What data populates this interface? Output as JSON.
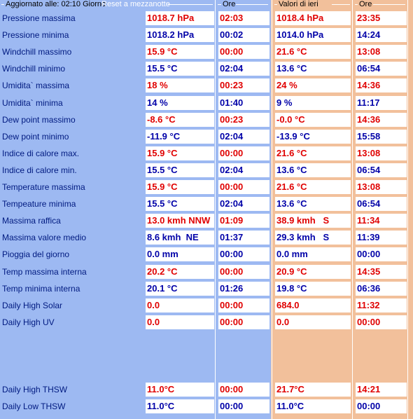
{
  "header": {
    "updated_label": "Aggiornato alle: 02:10 Giorno",
    "reset_label": "Reset a mezzanotte",
    "hours_label": "Ore",
    "yesterday_label": "Valori di ieri",
    "hours_label_yesterday": "Ore"
  },
  "rows": [
    {
      "label": "Pressione massima",
      "today": "1018.7 hPa",
      "today_time": "02:03",
      "yest": "1018.4 hPa",
      "yest_time": "23:35",
      "colors": [
        "red",
        "red",
        "red",
        "red"
      ]
    },
    {
      "label": "Pressione minima",
      "today": "1018.2 hPa",
      "today_time": "00:02",
      "yest": "1014.0 hPa",
      "yest_time": "14:24",
      "colors": [
        "blue",
        "blue",
        "blue",
        "blue"
      ]
    },
    {
      "label": "Windchill massimo",
      "today": "15.9 °C",
      "today_time": "00:00",
      "yest": "21.6 °C",
      "yest_time": "13:08",
      "colors": [
        "red",
        "red",
        "red",
        "red"
      ]
    },
    {
      "label": "Windchill minimo",
      "today": "15.5 °C",
      "today_time": "02:04",
      "yest": "13.6 °C",
      "yest_time": "06:54",
      "colors": [
        "blue",
        "blue",
        "blue",
        "blue"
      ]
    },
    {
      "label": "Umidita` massima",
      "today": "18 %",
      "today_time": "00:23",
      "yest": "24 %",
      "yest_time": "14:36",
      "colors": [
        "red",
        "red",
        "red",
        "red"
      ]
    },
    {
      "label": "Umidita` minima",
      "today": "14 %",
      "today_time": "01:40",
      "yest": "9 %",
      "yest_time": "11:17",
      "colors": [
        "blue",
        "blue",
        "blue",
        "blue"
      ]
    },
    {
      "label": "Dew point massimo",
      "today": "-8.6 °C",
      "today_time": "00:23",
      "yest": "-0.0 °C",
      "yest_time": "14:36",
      "colors": [
        "red",
        "red",
        "red",
        "red"
      ]
    },
    {
      "label": "Dew point minimo",
      "today": "-11.9 °C",
      "today_time": "02:04",
      "yest": "-13.9 °C",
      "yest_time": "15:58",
      "colors": [
        "blue",
        "blue",
        "blue",
        "blue"
      ]
    },
    {
      "label": "Indice di calore max.",
      "today": "15.9 °C",
      "today_time": "00:00",
      "yest": "21.6 °C",
      "yest_time": "13:08",
      "colors": [
        "red",
        "red",
        "red",
        "red"
      ]
    },
    {
      "label": "Indice di calore min.",
      "today": "15.5 °C",
      "today_time": "02:04",
      "yest": "13.6 °C",
      "yest_time": "06:54",
      "colors": [
        "blue",
        "blue",
        "blue",
        "blue"
      ]
    },
    {
      "label": "Temperature massima",
      "today": "15.9 °C",
      "today_time": "00:00",
      "yest": "21.6 °C",
      "yest_time": "13:08",
      "colors": [
        "red",
        "red",
        "red",
        "red"
      ]
    },
    {
      "label": "Tempeature minima",
      "today": "15.5 °C",
      "today_time": "02:04",
      "yest": "13.6 °C",
      "yest_time": "06:54",
      "colors": [
        "blue",
        "blue",
        "blue",
        "blue"
      ]
    },
    {
      "label": "Massima raffica",
      "today": "13.0 kmh NNW",
      "today_time": "01:09",
      "yest": "38.9 kmh   S",
      "yest_time": "11:34",
      "colors": [
        "red",
        "red",
        "red",
        "red"
      ]
    },
    {
      "label": "Massima valore medio",
      "today": "8.6 kmh  NE",
      "today_time": "01:37",
      "yest": "29.3 kmh   S",
      "yest_time": "11:39",
      "colors": [
        "blue",
        "blue",
        "blue",
        "blue"
      ]
    },
    {
      "label": "Pioggia del giorno",
      "today": "0.0 mm",
      "today_time": "00:00",
      "yest": "0.0 mm",
      "yest_time": "00:00",
      "colors": [
        "blue",
        "blue",
        "blue",
        "blue"
      ]
    },
    {
      "label": "Temp massima interna",
      "today": "20.2 °C",
      "today_time": "00:00",
      "yest": "20.9 °C",
      "yest_time": "14:35",
      "colors": [
        "red",
        "red",
        "red",
        "red"
      ]
    },
    {
      "label": "Temp minima interna",
      "today": "20.1 °C",
      "today_time": "01:26",
      "yest": "19.8 °C",
      "yest_time": "06:36",
      "colors": [
        "blue",
        "blue",
        "blue",
        "blue"
      ]
    },
    {
      "label": "Daily High Solar",
      "today": "0.0",
      "today_time": "00:00",
      "yest": "684.0",
      "yest_time": "11:32",
      "colors": [
        "red",
        "red",
        "red",
        "red"
      ]
    },
    {
      "label": "Daily High UV",
      "today": "0.0",
      "today_time": "00:00",
      "yest": "0.0",
      "yest_time": "00:00",
      "colors": [
        "red",
        "red",
        "red",
        "red"
      ]
    },
    {
      "label": "Daily High THSW",
      "today": "11.0°C",
      "today_time": "00:00",
      "yest": "21.7°C",
      "yest_time": "14:21",
      "colors": [
        "red",
        "red",
        "red",
        "red"
      ]
    },
    {
      "label": "Daily Low THSW",
      "today": "11.0°C",
      "today_time": "00:00",
      "yest": "11.0°C",
      "yest_time": "00:00",
      "colors": [
        "blue",
        "blue",
        "blue",
        "blue"
      ]
    }
  ]
}
